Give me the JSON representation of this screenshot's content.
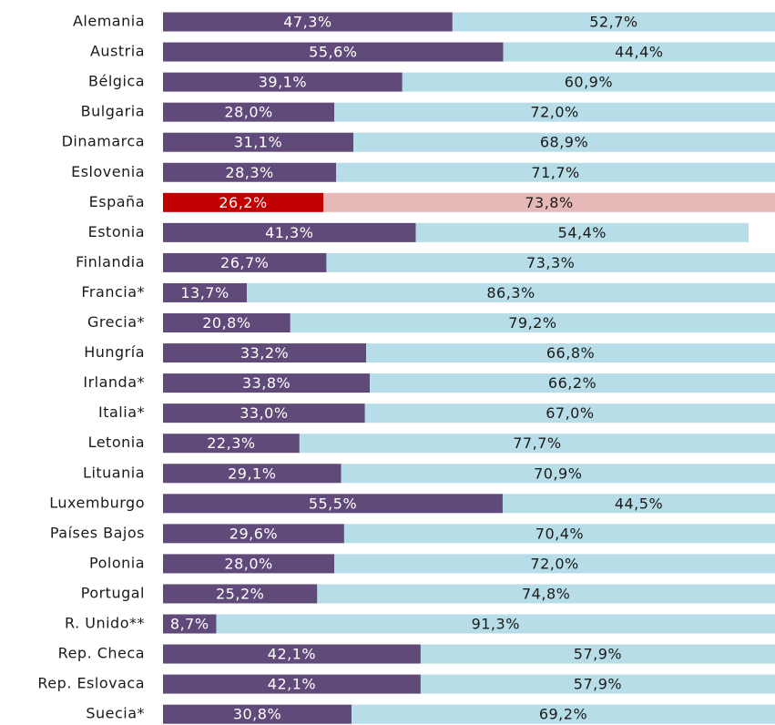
{
  "chart_data": {
    "type": "stacked_bar_horizontal",
    "categories": [
      "Alemania",
      "Austria",
      "Bélgica",
      "Bulgaria",
      "Dinamarca",
      "Eslovenia",
      "España",
      "Estonia",
      "Finlandia",
      "Francia*",
      "Grecia*",
      "Hungría",
      "Irlanda*",
      "Italia*",
      "Letonia",
      "Lituania",
      "Luxemburgo",
      "Países Bajos",
      "Polonia",
      "Portugal",
      "R. Unido**",
      "Rep. Checa",
      "Rep. Eslovaca",
      "Suecia*"
    ],
    "xlim": [
      0,
      100
    ],
    "series": [
      {
        "color": "#5f4a7a",
        "label_color": "#ffffff",
        "colors": [
          "#5f4a7a",
          "#5f4a7a",
          "#5f4a7a",
          "#5f4a7a",
          "#5f4a7a",
          "#5f4a7a",
          "#c00000",
          "#5f4a7a",
          "#5f4a7a",
          "#5f4a7a",
          "#5f4a7a",
          "#5f4a7a",
          "#5f4a7a",
          "#5f4a7a",
          "#5f4a7a",
          "#5f4a7a",
          "#5f4a7a",
          "#5f4a7a",
          "#5f4a7a",
          "#5f4a7a",
          "#5f4a7a",
          "#5f4a7a",
          "#5f4a7a",
          "#5f4a7a"
        ],
        "values": [
          47.3,
          55.6,
          39.1,
          28.0,
          31.1,
          28.3,
          26.2,
          41.3,
          26.7,
          13.7,
          20.8,
          33.2,
          33.8,
          33.0,
          22.3,
          29.1,
          55.5,
          29.6,
          28.0,
          25.2,
          8.7,
          42.1,
          42.1,
          30.8
        ],
        "value_labels": [
          "47,3%",
          "55,6%",
          "39,1%",
          "28,0%",
          "31,1%",
          "28,3%",
          "26,2%",
          "41,3%",
          "26,7%",
          "13,7%",
          "20,8%",
          "33,2%",
          "33,8%",
          "33,0%",
          "22,3%",
          "29,1%",
          "55,5%",
          "29,6%",
          "28,0%",
          "25,2%",
          "8,7%",
          "42,1%",
          "42,1%",
          "30,8%"
        ]
      },
      {
        "color": "#b7dde8",
        "label_color": "#1a1a1a",
        "colors": [
          "#b7dde8",
          "#b7dde8",
          "#b7dde8",
          "#b7dde8",
          "#b7dde8",
          "#b7dde8",
          "#e6b8b8",
          "#b7dde8",
          "#b7dde8",
          "#b7dde8",
          "#b7dde8",
          "#b7dde8",
          "#b7dde8",
          "#b7dde8",
          "#b7dde8",
          "#b7dde8",
          "#b7dde8",
          "#b7dde8",
          "#b7dde8",
          "#b7dde8",
          "#b7dde8",
          "#b7dde8",
          "#b7dde8",
          "#b7dde8"
        ],
        "values": [
          52.7,
          44.4,
          60.9,
          72.0,
          68.9,
          71.7,
          73.8,
          54.4,
          73.3,
          86.3,
          79.2,
          66.8,
          66.2,
          67.0,
          77.7,
          70.9,
          44.5,
          70.4,
          72.0,
          74.8,
          91.3,
          57.9,
          57.9,
          69.2
        ],
        "value_labels": [
          "52,7%",
          "44,4%",
          "60,9%",
          "72,0%",
          "68,9%",
          "71,7%",
          "73,8%",
          "54,4%",
          "73,3%",
          "86,3%",
          "79,2%",
          "66,8%",
          "66,2%",
          "67,0%",
          "77,7%",
          "70,9%",
          "44,5%",
          "70,4%",
          "72,0%",
          "74,8%",
          "91,3%",
          "57,9%",
          "57,9%",
          "69,2%"
        ]
      }
    ]
  }
}
